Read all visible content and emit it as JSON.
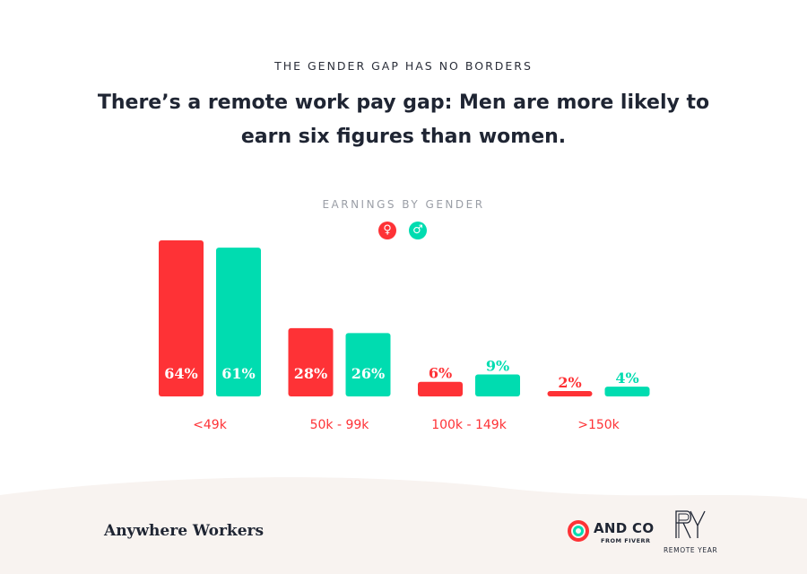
{
  "header": {
    "kicker": "THE GENDER GAP HAS NO BORDERS",
    "headline": "There’s a remote work pay gap: Men are more likely to earn six figures than women."
  },
  "legend": {
    "female_symbol": "♀",
    "male_symbol": "♂"
  },
  "colors": {
    "female": "#fe3236",
    "male": "#00dcb0",
    "category_label": "#fe3236",
    "footer_bg": "#f8f3f0"
  },
  "chart_data": {
    "type": "bar",
    "title": "EARNINGS BY GENDER",
    "categories": [
      "<49k",
      "50k - 99k",
      "100k - 149k",
      ">150k"
    ],
    "series": [
      {
        "name": "Female",
        "values": [
          64,
          28,
          6,
          2
        ],
        "labels": [
          "64%",
          "28%",
          "6%",
          "2%"
        ]
      },
      {
        "name": "Male",
        "values": [
          61,
          26,
          9,
          4
        ],
        "labels": [
          "61%",
          "26%",
          "9%",
          "4%"
        ]
      }
    ],
    "ylim": [
      0,
      64
    ],
    "grid": false,
    "legend_position": "top-center"
  },
  "footer": {
    "brand": "Anywhere Workers",
    "andco_main": "AND CO",
    "andco_sub": "FROM FIVERR",
    "ry_mark": "RY",
    "ry_name": "REMOTE YEAR"
  }
}
